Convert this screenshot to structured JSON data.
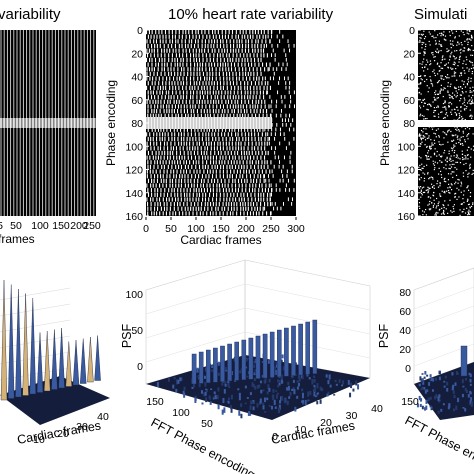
{
  "figure": {
    "panels_top": [
      {
        "title": "variability",
        "xlabel": "frames",
        "ylabel": ""
      },
      {
        "title": "10% heart rate variability",
        "xlabel": "Cardiac frames",
        "ylabel": "Phase encoding"
      },
      {
        "title": "Simulati",
        "xlabel": "",
        "ylabel": "Phase encoding"
      }
    ],
    "panels_bottom": [
      {
        "xlabel": "Cardiac frames",
        "ylabel": ""
      },
      {
        "xlabel": "Cardiac frames",
        "ylabel": "PSF",
        "zlabel": "FFT Phase encoding"
      },
      {
        "xlabel": "",
        "ylabel": "PSF",
        "zlabel": "FFT Phase encoding"
      }
    ]
  },
  "colors": {
    "background": "#ffffff",
    "sampling_on": "#ffffff",
    "sampling_off": "#000000",
    "surface_dark": "#141e3c",
    "surface_mid": "#3a5aa0",
    "surface_peak_warm": "#d6b277"
  },
  "chart_data": [
    {
      "type": "heatmap",
      "title": "variability",
      "xlabel": "frames",
      "x_ticks": [
        5,
        50,
        100,
        150,
        200,
        250
      ],
      "y_ticks": [],
      "xlim": [
        0,
        250
      ],
      "ylim": [
        160,
        0
      ],
      "pattern": "regular vertical sampling lines with bright band near row 80"
    },
    {
      "type": "heatmap",
      "title": "10% heart rate variability",
      "xlabel": "Cardiac frames",
      "ylabel": "Phase encoding",
      "x_ticks": [
        0,
        50,
        100,
        150,
        200,
        250,
        300
      ],
      "y_ticks": [
        0,
        20,
        40,
        60,
        80,
        100,
        120,
        140,
        160
      ],
      "xlim": [
        0,
        300
      ],
      "ylim": [
        160,
        0
      ],
      "pattern": "jittered sampling lines, bright band at rows 75-85, sparse beyond frame 240"
    },
    {
      "type": "heatmap",
      "title": "Simulati",
      "ylabel": "Phase encoding",
      "x_ticks": [],
      "y_ticks": [
        0,
        20,
        40,
        60,
        80,
        100,
        120,
        140,
        160
      ],
      "ylim": [
        160,
        0
      ],
      "pattern": "random sampling, fully sampled band near row 80"
    },
    {
      "type": "area",
      "subtype": "surface3d",
      "xlabel": "Cardiac frames",
      "x_ticks": [
        10,
        20,
        30,
        40
      ],
      "peaks": "periodic tall spikes (aliasing) along cardiac frames"
    },
    {
      "type": "area",
      "subtype": "surface3d",
      "xlabel": "Cardiac frames",
      "ylabel": "PSF",
      "zlabel": "FFT Phase encoding",
      "x_ticks": [
        0,
        10,
        20,
        30,
        40
      ],
      "y_ticks": [
        100,
        50,
        0
      ],
      "z_ticks": [
        150,
        100,
        50
      ],
      "peaks": "ridge of evenly spaced spikes along the central row, low noise floor"
    },
    {
      "type": "area",
      "subtype": "surface3d",
      "ylabel": "PSF",
      "zlabel": "FFT Phase encoding",
      "y_ticks": [
        80,
        60,
        40,
        20,
        0
      ],
      "z_ticks": [
        150
      ],
      "peaks": "single central spike, incoherent noise floor"
    }
  ]
}
